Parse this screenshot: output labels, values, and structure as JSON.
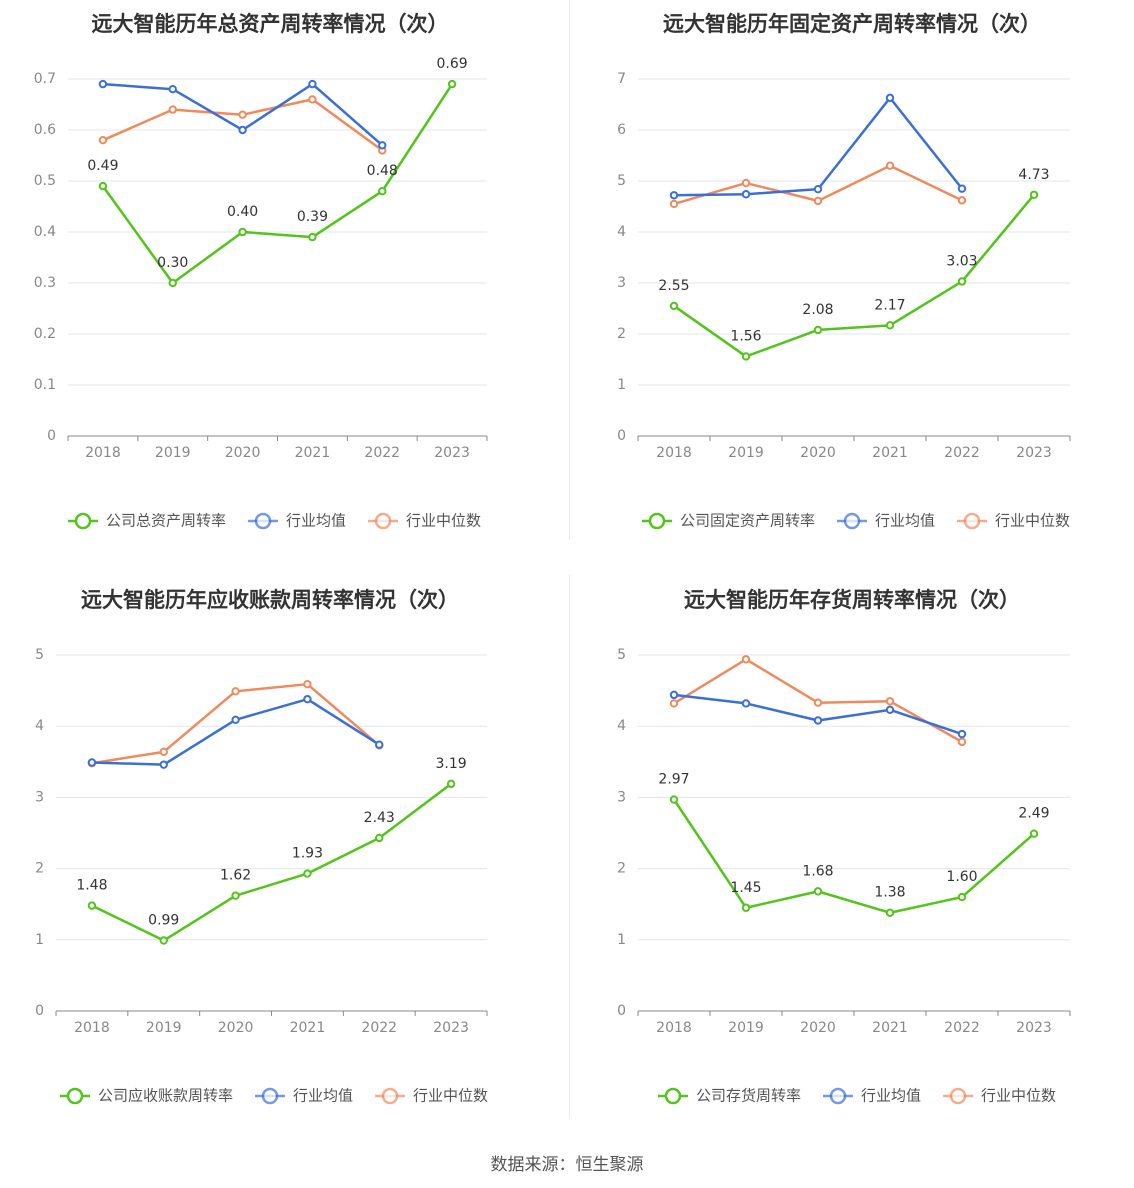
{
  "source": "数据来源：恒生聚源",
  "colors": {
    "company": "#52c41a",
    "avg": "#3b6fd8",
    "median": "#f08a5d"
  },
  "chart_data": [
    {
      "type": "line",
      "title": "远大智能历年总资产周转率情况（次）",
      "categories": [
        "2018",
        "2019",
        "2020",
        "2021",
        "2022",
        "2023"
      ],
      "ylim": [
        0,
        0.7
      ],
      "yticks": [
        "0",
        "0.1",
        "0.2",
        "0.3",
        "0.4",
        "0.5",
        "0.6",
        "0.7"
      ],
      "ytick_values": [
        0,
        0.1,
        0.2,
        0.3,
        0.4,
        0.5,
        0.6,
        0.7
      ],
      "grid": true,
      "legend_position": "bottom",
      "series": [
        {
          "name": "公司总资产周转率",
          "values": [
            0.49,
            0.3,
            0.4,
            0.39,
            0.48,
            0.69
          ],
          "labels": [
            "0.49",
            "0.30",
            "0.40",
            "0.39",
            "0.48",
            "0.69"
          ]
        },
        {
          "name": "行业均值",
          "values": [
            0.69,
            0.68,
            0.6,
            0.69,
            0.57,
            null
          ]
        },
        {
          "name": "行业中位数",
          "values": [
            0.58,
            0.64,
            0.63,
            0.66,
            0.56,
            null
          ]
        }
      ]
    },
    {
      "type": "line",
      "title": "远大智能历年固定资产周转率情况（次）",
      "categories": [
        "2018",
        "2019",
        "2020",
        "2021",
        "2022",
        "2023"
      ],
      "ylim": [
        0,
        7
      ],
      "yticks": [
        "0",
        "1",
        "2",
        "3",
        "4",
        "5",
        "6",
        "7"
      ],
      "ytick_values": [
        0,
        1,
        2,
        3,
        4,
        5,
        6,
        7
      ],
      "grid": true,
      "legend_position": "bottom",
      "series": [
        {
          "name": "公司固定资产周转率",
          "values": [
            2.55,
            1.56,
            2.08,
            2.17,
            3.03,
            4.73
          ],
          "labels": [
            "2.55",
            "1.56",
            "2.08",
            "2.17",
            "3.03",
            "4.73"
          ]
        },
        {
          "name": "行业均值",
          "values": [
            4.72,
            4.74,
            4.84,
            6.63,
            4.85,
            null
          ]
        },
        {
          "name": "行业中位数",
          "values": [
            4.55,
            4.96,
            4.61,
            5.3,
            4.62,
            null
          ]
        }
      ]
    },
    {
      "type": "line",
      "title": "远大智能历年应收账款周转率情况（次）",
      "categories": [
        "2018",
        "2019",
        "2020",
        "2021",
        "2022",
        "2023"
      ],
      "ylim": [
        0,
        5
      ],
      "yticks": [
        "0",
        "1",
        "2",
        "3",
        "4",
        "5"
      ],
      "ytick_values": [
        0,
        1,
        2,
        3,
        4,
        5
      ],
      "grid": true,
      "legend_position": "bottom",
      "series": [
        {
          "name": "公司应收账款周转率",
          "values": [
            1.48,
            0.99,
            1.62,
            1.93,
            2.43,
            3.19
          ],
          "labels": [
            "1.48",
            "0.99",
            "1.62",
            "1.93",
            "2.43",
            "3.19"
          ]
        },
        {
          "name": "行业均值",
          "values": [
            3.49,
            3.46,
            4.09,
            4.38,
            3.74,
            null
          ]
        },
        {
          "name": "行业中位数",
          "values": [
            3.48,
            3.64,
            4.49,
            4.59,
            3.73,
            null
          ]
        }
      ]
    },
    {
      "type": "line",
      "title": "远大智能历年存货周转率情况（次）",
      "categories": [
        "2018",
        "2019",
        "2020",
        "2021",
        "2022",
        "2023"
      ],
      "ylim": [
        0,
        5
      ],
      "yticks": [
        "0",
        "1",
        "2",
        "3",
        "4",
        "5"
      ],
      "ytick_values": [
        0,
        1,
        2,
        3,
        4,
        5
      ],
      "grid": true,
      "legend_position": "bottom",
      "series": [
        {
          "name": "公司存货周转率",
          "values": [
            2.97,
            1.45,
            1.68,
            1.38,
            1.6,
            2.49
          ],
          "labels": [
            "2.97",
            "1.45",
            "1.68",
            "1.38",
            "1.60",
            "2.49"
          ]
        },
        {
          "name": "行业均值",
          "values": [
            4.44,
            4.32,
            4.08,
            4.23,
            3.89,
            null
          ]
        },
        {
          "name": "行业中位数",
          "values": [
            4.32,
            4.94,
            4.33,
            4.35,
            3.78,
            null
          ]
        }
      ]
    }
  ]
}
